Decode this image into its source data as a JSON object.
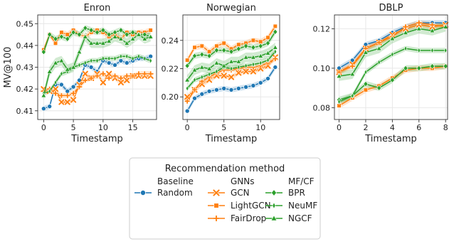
{
  "chart_data": [
    {
      "type": "line",
      "title": "Enron",
      "xlabel": "Timestamp",
      "ylabel": "MV@100",
      "xlim": [
        -1,
        19
      ],
      "ylim": [
        0.406,
        0.454
      ],
      "xticks": [
        0,
        5,
        10,
        15
      ],
      "yticks": [
        0.41,
        0.42,
        0.43,
        0.44,
        0.45
      ],
      "ytick_labels": [
        "0.41",
        "0.42",
        "0.43",
        "0.44",
        "0.45"
      ],
      "grid": true,
      "x": [
        0,
        1,
        2,
        3,
        4,
        5,
        6,
        7,
        8,
        9,
        10,
        11,
        12,
        13,
        14,
        15,
        16,
        17,
        18
      ],
      "series": [
        {
          "name": "Random",
          "values": [
            0.411,
            0.412,
            0.422,
            0.422,
            0.419,
            0.421,
            0.424,
            0.431,
            0.43,
            0.428,
            0.433,
            0.432,
            0.431,
            0.433,
            0.432,
            0.433,
            0.434,
            0.434,
            0.435
          ]
        },
        {
          "name": "GCN",
          "values": [
            0.42,
            0.419,
            0.42,
            0.414,
            0.414,
            0.415,
            0.422,
            0.427,
            0.425,
            0.427,
            0.423,
            0.427,
            0.425,
            0.423,
            0.424,
            0.426,
            0.426,
            0.426,
            0.426
          ]
        },
        {
          "name": "LightGCN",
          "values": [
            0.438,
            0.445,
            0.441,
            0.446,
            0.445,
            0.447,
            0.445,
            0.444,
            0.446,
            0.447,
            0.446,
            0.444,
            0.445,
            0.443,
            0.446,
            0.445,
            0.446,
            0.446,
            0.447
          ]
        },
        {
          "name": "FairDrop",
          "values": [
            0.419,
            0.42,
            0.418,
            0.417,
            0.417,
            0.418,
            0.421,
            0.424,
            0.425,
            0.426,
            0.427,
            0.425,
            0.426,
            0.425,
            0.426,
            0.426,
            0.427,
            0.427,
            0.427
          ]
        },
        {
          "name": "BPR",
          "values": [
            0.437,
            0.445,
            0.443,
            0.444,
            0.443,
            0.446,
            0.445,
            0.448,
            0.447,
            0.446,
            0.447,
            0.445,
            0.446,
            0.447,
            0.445,
            0.446,
            0.445,
            0.445,
            0.444
          ]
        },
        {
          "name": "NeuMF",
          "values": [
            0.418,
            0.419,
            0.423,
            0.427,
            0.428,
            0.43,
            0.431,
            0.432,
            0.433,
            0.433,
            0.434,
            0.434,
            0.434,
            0.435,
            0.435,
            0.434,
            0.435,
            0.434,
            0.433
          ]
        },
        {
          "name": "NGCF",
          "values": [
            0.417,
            0.428,
            0.432,
            0.433,
            0.429,
            0.43,
            0.437,
            0.444,
            0.441,
            0.441,
            0.441,
            0.442,
            0.444,
            0.443,
            0.441,
            0.443,
            0.445,
            0.443,
            0.444
          ]
        }
      ]
    },
    {
      "type": "line",
      "title": "Norwegian",
      "xlabel": "Timestamp",
      "ylabel": "",
      "xlim": [
        -0.6,
        12.6
      ],
      "ylim": [
        0.184,
        0.258
      ],
      "xticks": [
        0,
        5,
        10
      ],
      "yticks": [
        0.2,
        0.22,
        0.24
      ],
      "ytick_labels": [
        "0.20",
        "0.22",
        "0.24"
      ],
      "grid": true,
      "x": [
        0,
        1,
        2,
        3,
        4,
        5,
        6,
        7,
        8,
        9,
        10,
        11,
        12
      ],
      "series": [
        {
          "name": "Random",
          "values": [
            0.19,
            0.199,
            0.202,
            0.204,
            0.205,
            0.206,
            0.205,
            0.206,
            0.207,
            0.208,
            0.21,
            0.213,
            0.221
          ]
        },
        {
          "name": "GCN",
          "values": [
            0.2,
            0.205,
            0.209,
            0.212,
            0.215,
            0.215,
            0.214,
            0.217,
            0.218,
            0.218,
            0.22,
            0.222,
            0.228
          ]
        },
        {
          "name": "LightGCN",
          "values": [
            0.226,
            0.235,
            0.236,
            0.232,
            0.236,
            0.238,
            0.234,
            0.237,
            0.238,
            0.24,
            0.239,
            0.242,
            0.25
          ]
        },
        {
          "name": "FairDrop",
          "values": [
            0.197,
            0.205,
            0.211,
            0.214,
            0.217,
            0.219,
            0.219,
            0.22,
            0.221,
            0.221,
            0.222,
            0.224,
            0.227
          ]
        },
        {
          "name": "BPR",
          "values": [
            0.222,
            0.229,
            0.23,
            0.229,
            0.233,
            0.233,
            0.232,
            0.234,
            0.236,
            0.235,
            0.236,
            0.238,
            0.246
          ]
        },
        {
          "name": "NeuMF",
          "values": [
            0.206,
            0.212,
            0.214,
            0.216,
            0.218,
            0.221,
            0.22,
            0.221,
            0.222,
            0.223,
            0.224,
            0.226,
            0.232
          ]
        },
        {
          "name": "NGCF",
          "values": [
            0.212,
            0.219,
            0.221,
            0.22,
            0.224,
            0.222,
            0.225,
            0.225,
            0.228,
            0.228,
            0.229,
            0.231,
            0.235
          ]
        }
      ]
    },
    {
      "type": "line",
      "title": "DBLP",
      "xlabel": "Timestamp",
      "ylabel": "",
      "xlim": [
        -0.35,
        8.15
      ],
      "ylim": [
        0.074,
        0.127
      ],
      "xticks": [
        0,
        2,
        4,
        6,
        8
      ],
      "yticks": [
        0.08,
        0.1,
        0.12
      ],
      "ytick_labels": [
        "0.08",
        "0.10",
        "0.12"
      ],
      "grid": true,
      "x": [
        0,
        1,
        2,
        3,
        4,
        5,
        6,
        7,
        8
      ],
      "series": [
        {
          "name": "Random",
          "values": [
            0.1,
            0.104,
            0.112,
            0.114,
            0.118,
            0.121,
            0.123,
            0.123,
            0.123
          ]
        },
        {
          "name": "GCN",
          "values": [
            0.098,
            0.102,
            0.11,
            0.113,
            0.117,
            0.12,
            0.122,
            0.121,
            0.122
          ]
        },
        {
          "name": "LightGCN",
          "values": [
            0.081,
            0.085,
            0.089,
            0.091,
            0.095,
            0.099,
            0.1,
            0.1,
            0.101
          ]
        },
        {
          "name": "FairDrop",
          "values": [
            0.098,
            0.101,
            0.11,
            0.113,
            0.116,
            0.121,
            0.123,
            0.122,
            0.121
          ]
        },
        {
          "name": "BPR",
          "values": [
            0.084,
            0.086,
            0.092,
            0.09,
            0.094,
            0.1,
            0.1,
            0.101,
            0.101
          ]
        },
        {
          "name": "NeuMF",
          "values": [
            0.083,
            0.086,
            0.098,
            0.103,
            0.107,
            0.11,
            0.109,
            0.109,
            0.109
          ]
        },
        {
          "name": "NGCF",
          "values": [
            0.096,
            0.097,
            0.108,
            0.11,
            0.115,
            0.118,
            0.12,
            0.119,
            0.121
          ]
        }
      ]
    }
  ],
  "legend": {
    "title": "Recommendation method",
    "placement": "bottom-center",
    "groups": [
      {
        "header": "Baseline",
        "items": [
          {
            "name": "Random",
            "color": "#1f77b4",
            "marker": "circle"
          }
        ]
      },
      {
        "header": "GNNs",
        "items": [
          {
            "name": "GCN",
            "color": "#ff7f0e",
            "marker": "x"
          },
          {
            "name": "LightGCN",
            "color": "#ff7f0e",
            "marker": "square"
          },
          {
            "name": "FairDrop",
            "color": "#ff7f0e",
            "marker": "plus"
          }
        ]
      },
      {
        "header": "MF/CF",
        "items": [
          {
            "name": "BPR",
            "color": "#2ca02c",
            "marker": "diamond"
          },
          {
            "name": "NeuMF",
            "color": "#2ca02c",
            "marker": "thin-diamond"
          },
          {
            "name": "NGCF",
            "color": "#2ca02c",
            "marker": "triangle"
          }
        ]
      }
    ]
  },
  "colors": {
    "random": "#1f77b4",
    "gnn": "#ff7f0e",
    "mfcf": "#2ca02c",
    "panel_background": "#ffffff",
    "grid": "#e6e6e6",
    "axes_edge": "#333333"
  }
}
